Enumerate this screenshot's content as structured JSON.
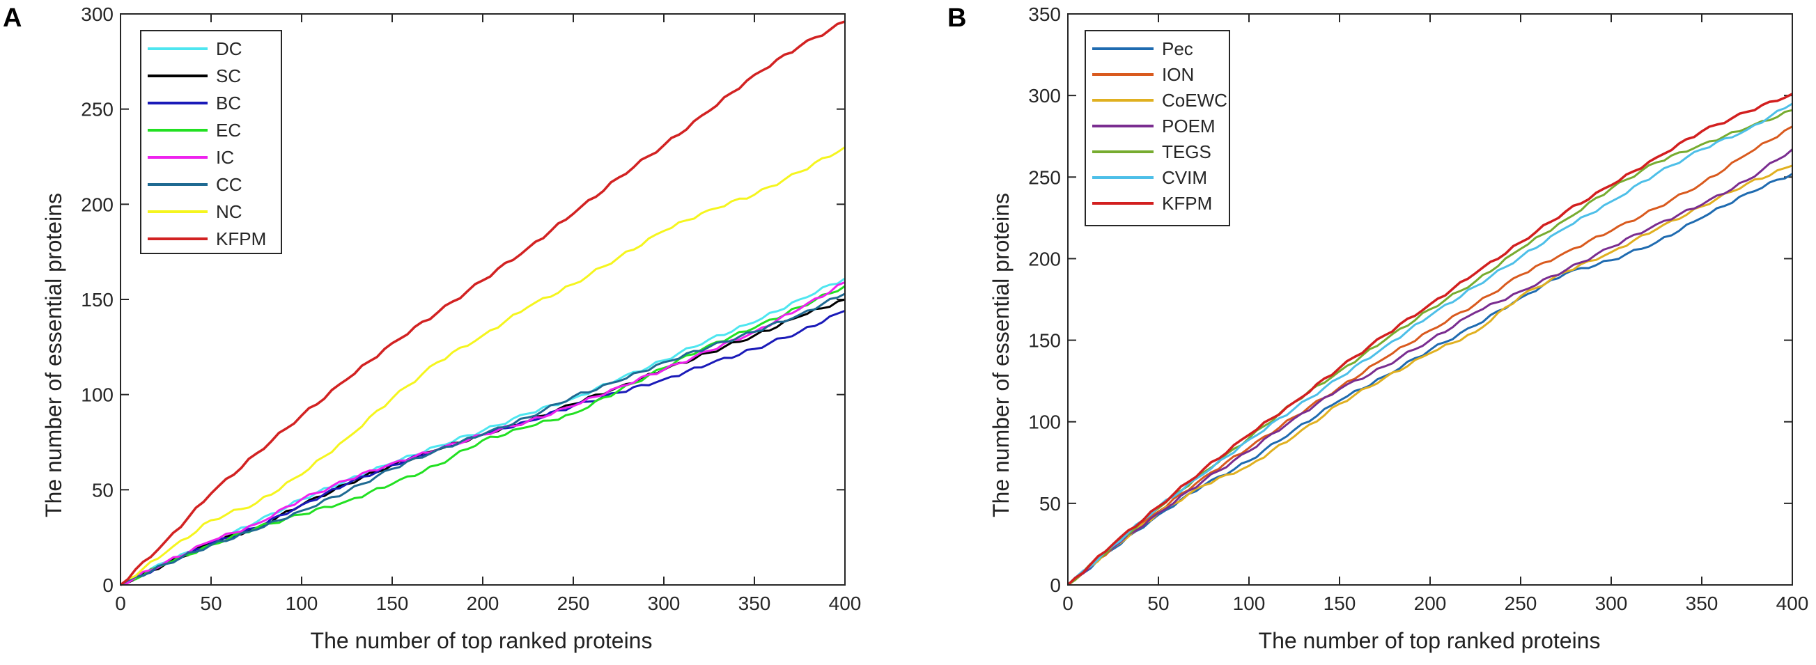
{
  "chart_data": [
    {
      "panel_label": "A",
      "type": "line",
      "xlabel": "The number of top ranked proteins",
      "ylabel": "The number of essential proteins",
      "xlim": [
        0,
        400
      ],
      "ylim": [
        0,
        300
      ],
      "xticks": [
        0,
        50,
        100,
        150,
        200,
        250,
        300,
        350,
        400
      ],
      "yticks": [
        0,
        50,
        100,
        150,
        200,
        250,
        300
      ],
      "grid": false,
      "legend_position": "top-left",
      "x": [
        0,
        25,
        50,
        75,
        100,
        125,
        150,
        175,
        200,
        225,
        250,
        275,
        300,
        325,
        350,
        375,
        400
      ],
      "series": [
        {
          "name": "DC",
          "color": "#4ee6f0",
          "values": [
            0,
            12,
            22,
            33,
            45,
            55,
            64,
            73,
            81,
            90,
            98,
            108,
            118,
            129,
            138,
            150,
            161
          ]
        },
        {
          "name": "SC",
          "color": "#000000",
          "values": [
            0,
            11,
            22,
            30,
            42,
            53,
            63,
            71,
            79,
            86,
            95,
            104,
            113,
            122,
            131,
            141,
            150
          ]
        },
        {
          "name": "BC",
          "color": "#1a1ab8",
          "values": [
            0,
            11,
            22,
            30,
            42,
            53,
            63,
            71,
            79,
            86,
            94,
            101,
            108,
            116,
            124,
            133,
            144
          ]
        },
        {
          "name": "EC",
          "color": "#22e022",
          "values": [
            0,
            11,
            21,
            30,
            37,
            44,
            53,
            63,
            76,
            83,
            90,
            102,
            114,
            126,
            135,
            146,
            157
          ]
        },
        {
          "name": "IC",
          "color": "#ee22ee",
          "values": [
            0,
            12,
            23,
            32,
            45,
            55,
            64,
            71,
            79,
            86,
            94,
            104,
            113,
            123,
            133,
            145,
            159
          ]
        },
        {
          "name": "CC",
          "color": "#1f6a92",
          "values": [
            0,
            11,
            21,
            29,
            39,
            49,
            61,
            71,
            79,
            88,
            99,
            107,
            117,
            125,
            133,
            142,
            153
          ]
        },
        {
          "name": "NC",
          "color": "#f5f51e",
          "values": [
            0,
            17,
            34,
            43,
            58,
            77,
            98,
            117,
            131,
            146,
            158,
            172,
            186,
            197,
            205,
            217,
            230
          ]
        },
        {
          "name": "KFPM",
          "color": "#d22222",
          "values": [
            0,
            23,
            48,
            69,
            89,
            108,
            127,
            143,
            160,
            177,
            195,
            214,
            231,
            249,
            268,
            283,
            296
          ]
        }
      ]
    },
    {
      "panel_label": "B",
      "type": "line",
      "xlabel": "The number of top ranked proteins",
      "ylabel": "The number of essential proteins",
      "xlim": [
        0,
        400
      ],
      "ylim": [
        0,
        350
      ],
      "xticks": [
        0,
        50,
        100,
        150,
        200,
        250,
        300,
        350,
        400
      ],
      "yticks": [
        0,
        50,
        100,
        150,
        200,
        250,
        300,
        350
      ],
      "grid": false,
      "legend_position": "top-left",
      "x": [
        0,
        25,
        50,
        75,
        100,
        125,
        150,
        175,
        200,
        225,
        250,
        275,
        300,
        325,
        350,
        375,
        400
      ],
      "series": [
        {
          "name": "Pec",
          "color": "#1f6bb0",
          "values": [
            0,
            22,
            43,
            61,
            76,
            95,
            113,
            128,
            144,
            159,
            176,
            191,
            199,
            210,
            225,
            240,
            252
          ]
        },
        {
          "name": "ION",
          "color": "#d95a1e",
          "values": [
            0,
            23,
            45,
            66,
            84,
            103,
            121,
            139,
            156,
            172,
            190,
            204,
            217,
            231,
            246,
            264,
            281
          ]
        },
        {
          "name": "CoEWC",
          "color": "#e0b020",
          "values": [
            0,
            23,
            44,
            61,
            73,
            91,
            111,
            127,
            142,
            155,
            177,
            192,
            204,
            218,
            232,
            246,
            257
          ]
        },
        {
          "name": "POEM",
          "color": "#7a2d90",
          "values": [
            0,
            23,
            44,
            64,
            82,
            102,
            120,
            134,
            150,
            167,
            180,
            193,
            207,
            221,
            233,
            248,
            267
          ]
        },
        {
          "name": "TEGS",
          "color": "#77ac30",
          "values": [
            0,
            24,
            47,
            69,
            90,
            112,
            131,
            150,
            169,
            186,
            206,
            224,
            243,
            259,
            270,
            280,
            291
          ]
        },
        {
          "name": "CVIM",
          "color": "#4dbfe8",
          "values": [
            0,
            24,
            48,
            68,
            89,
            108,
            127,
            146,
            165,
            183,
            201,
            219,
            235,
            252,
            267,
            279,
            295
          ]
        },
        {
          "name": "KFPM",
          "color": "#d21f1f",
          "values": [
            0,
            25,
            48,
            71,
            92,
            112,
            133,
            153,
            172,
            191,
            210,
            229,
            245,
            262,
            278,
            290,
            301
          ]
        }
      ]
    }
  ]
}
